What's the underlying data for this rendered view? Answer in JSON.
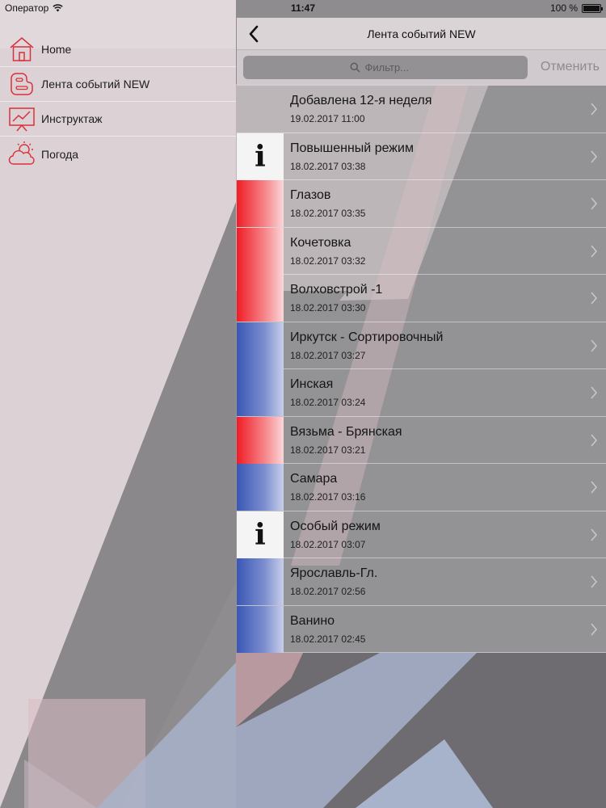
{
  "status": {
    "carrier": "Оператор",
    "time": "11:47",
    "battery": "100 %",
    "battery_level": 1.0,
    "icons": [
      "wifi-icon",
      "battery-icon"
    ]
  },
  "sidebar": {
    "items": [
      {
        "label": "Home",
        "icon": "home-icon"
      },
      {
        "label": "Лента событий NEW",
        "icon": "blogger-icon"
      },
      {
        "label": "Инструктаж",
        "icon": "presentation-icon"
      },
      {
        "label": "Погода",
        "icon": "weather-icon"
      }
    ]
  },
  "nav": {
    "title": "Лента событий NEW",
    "back_icon": "back-chevron-icon"
  },
  "search": {
    "placeholder": "Фильтр...",
    "cancel_label": "Отменить",
    "icon": "search-icon"
  },
  "events": [
    {
      "title": "Добавлена 12-я неделя",
      "date": "19.02.2017 11:00",
      "kind": "none"
    },
    {
      "title": "Повышенный режим",
      "date": "18.02.2017 03:38",
      "kind": "info"
    },
    {
      "title": "Глазов",
      "date": "18.02.2017 03:35",
      "kind": "red"
    },
    {
      "title": "Кочетовка",
      "date": "18.02.2017 03:32",
      "kind": "red"
    },
    {
      "title": "Волховстрой -1",
      "date": "18.02.2017 03:30",
      "kind": "red"
    },
    {
      "title": "Иркутск - Сортировочный",
      "date": "18.02.2017 03:27",
      "kind": "blue"
    },
    {
      "title": "Инская",
      "date": "18.02.2017 03:24",
      "kind": "blue"
    },
    {
      "title": "Вязьма - Брянская",
      "date": "18.02.2017 03:21",
      "kind": "red"
    },
    {
      "title": "Самара",
      "date": "18.02.2017 03:16",
      "kind": "blue"
    },
    {
      "title": "Особый режим",
      "date": "18.02.2017 03:07",
      "kind": "info"
    },
    {
      "title": "Ярославль-Гл.",
      "date": "18.02.2017 02:56",
      "kind": "blue"
    },
    {
      "title": "Ванино",
      "date": "18.02.2017 02:45",
      "kind": "blue"
    }
  ],
  "info_glyph": "i",
  "colors": {
    "accent_red": "#ef1c26",
    "accent_blue": "#3a57b5",
    "icon_red": "#d9303a",
    "cancel_gray": "#8c8b8f"
  }
}
